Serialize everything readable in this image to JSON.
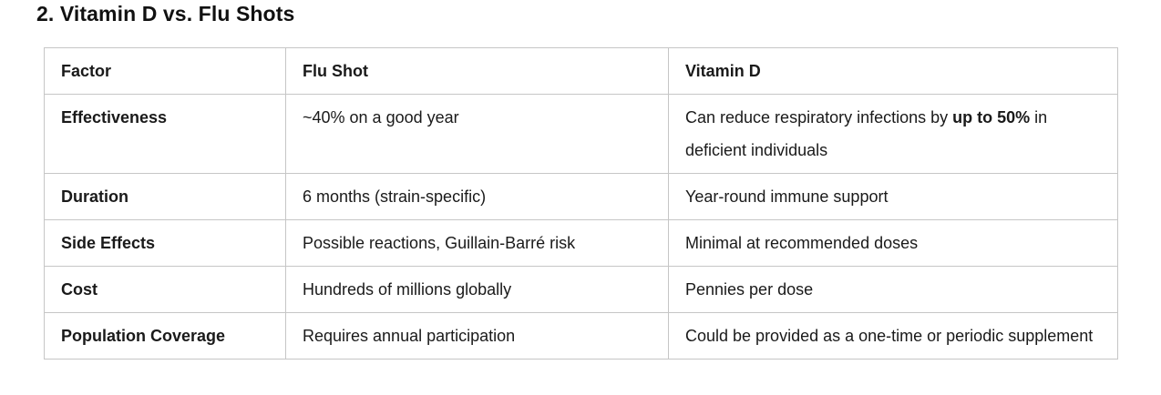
{
  "page": {
    "title": "2. Vitamin D vs. Flu Shots"
  },
  "table": {
    "headers": {
      "factor": "Factor",
      "flu_shot": "Flu Shot",
      "vitamin_d": "Vitamin D"
    },
    "rows": [
      {
        "factor": "Effectiveness",
        "flu_shot": "~40% on a good year",
        "vitamin_d": {
          "prefix": "Can reduce respiratory infections by ",
          "bold": "up to 50%",
          "suffix": " in deficient individuals"
        }
      },
      {
        "factor": "Duration",
        "flu_shot": "6 months (strain-specific)",
        "vitamin_d": "Year-round immune support"
      },
      {
        "factor": "Side Effects",
        "flu_shot": "Possible reactions, Guillain-Barré risk",
        "vitamin_d": "Minimal at recommended doses"
      },
      {
        "factor": "Cost",
        "flu_shot": "Hundreds of millions globally",
        "vitamin_d": "Pennies per dose"
      },
      {
        "factor": "Population Coverage",
        "flu_shot": "Requires annual participation",
        "vitamin_d": "Could be provided as a one-time or periodic supplement"
      }
    ]
  },
  "colors": {
    "border": "#c6c6c6",
    "text": "#1a1a1a",
    "background": "#ffffff"
  }
}
